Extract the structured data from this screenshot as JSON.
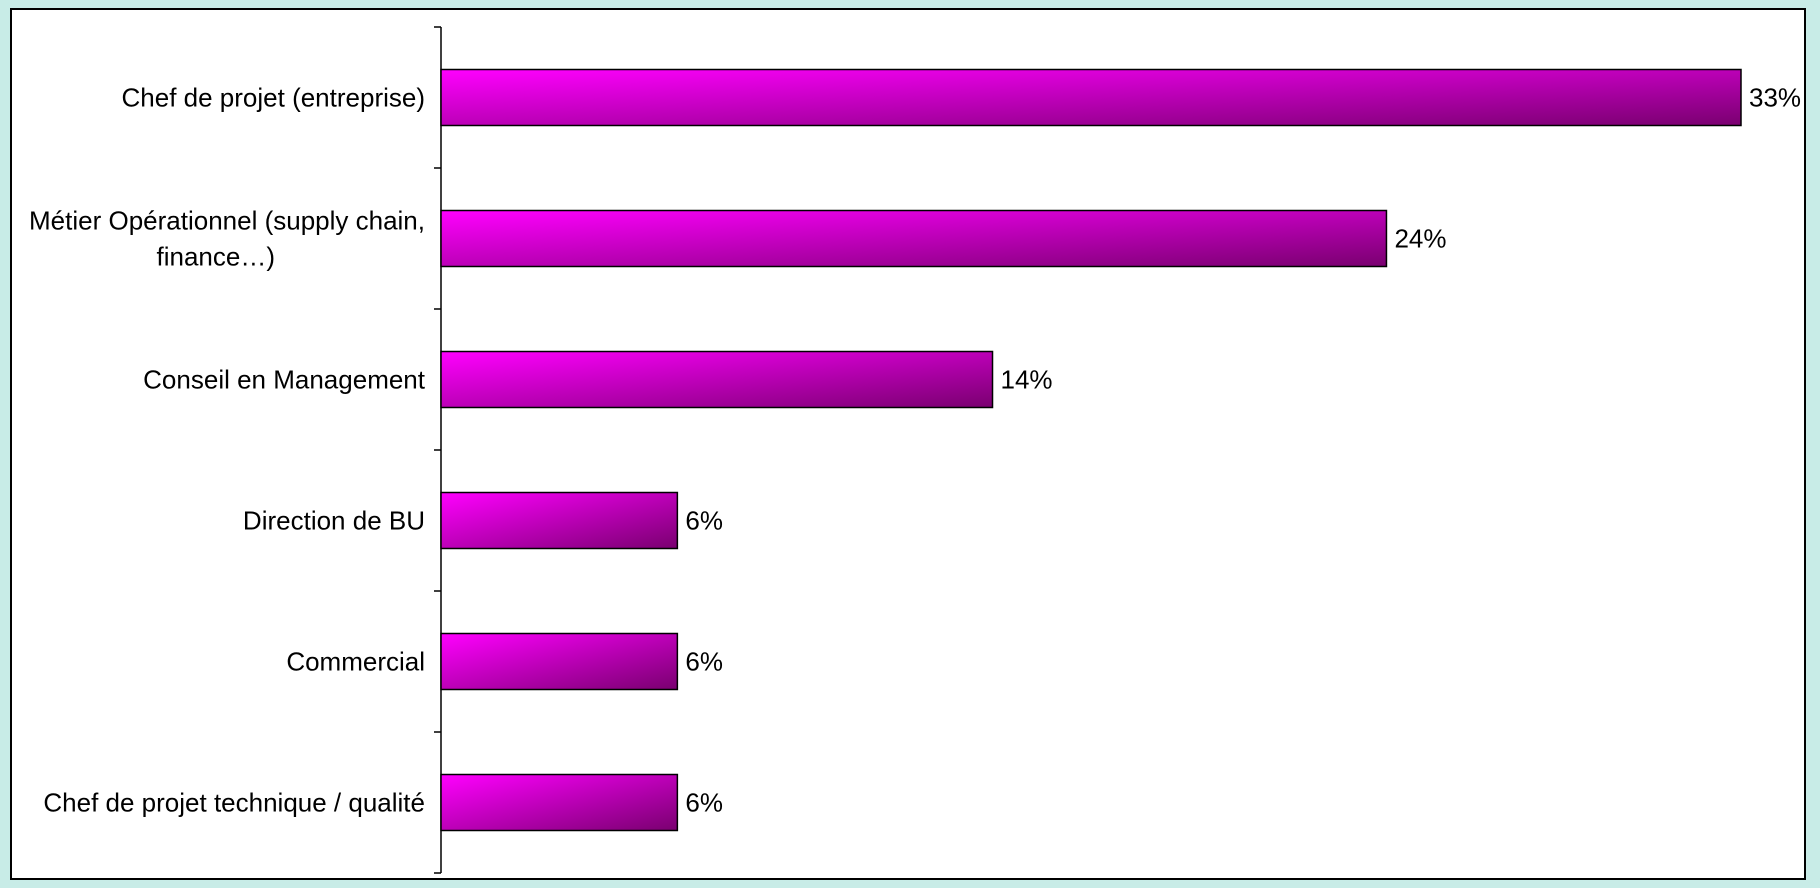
{
  "chart_data": {
    "type": "bar",
    "orientation": "horizontal",
    "categories": [
      [
        "Chef de projet (entreprise)"
      ],
      [
        "Métier Opérationnel (supply chain,",
        "finance…)"
      ],
      [
        "Conseil en Management"
      ],
      [
        "Direction de BU"
      ],
      [
        "Commercial"
      ],
      [
        "Chef de projet technique / qualité"
      ]
    ],
    "values": [
      33,
      24,
      14,
      6,
      6,
      6
    ],
    "value_labels": [
      "33%",
      "24%",
      "14%",
      "6%",
      "6%",
      "6%"
    ],
    "unit": "%",
    "title": "",
    "xlabel": "",
    "ylabel": "",
    "xlim": [
      0,
      33
    ],
    "grid": false,
    "legend": "none",
    "colors": {
      "bar_light": "#ff00ff",
      "bar_dark": "#7a0070",
      "bar_border": "#000000",
      "background": "#c8ece7",
      "plot_background": "#ffffff"
    }
  }
}
